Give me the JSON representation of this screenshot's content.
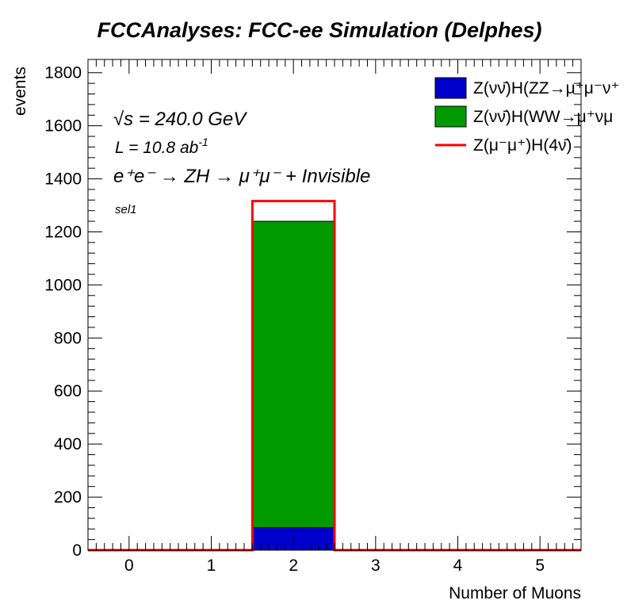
{
  "chart_data": {
    "type": "bar",
    "title": "FCCAnalyses: FCC-ee Simulation (Delphes)",
    "xlabel": "Number of Muons",
    "ylabel": "events",
    "xlim": [
      -0.5,
      5.5
    ],
    "ylim": [
      0,
      1850
    ],
    "x_ticks": [
      "0",
      "1",
      "2",
      "3",
      "4",
      "5"
    ],
    "y_ticks": [
      "0",
      "200",
      "400",
      "600",
      "800",
      "1000",
      "1200",
      "1400",
      "1600",
      "1800"
    ],
    "bin_edges": [
      -0.5,
      0.5,
      1.5,
      2.5,
      3.5,
      4.5,
      5.5
    ],
    "stacked": true,
    "series": [
      {
        "name": "Z(νν̄)H(ZZ→μ⁺μ⁻ν⁺",
        "kind": "stacked-fill",
        "color": "#0000cc",
        "values": [
          0,
          0,
          85,
          0,
          0,
          0
        ]
      },
      {
        "name": "Z(νν̄)H(WW→μ⁺νμ",
        "kind": "stacked-fill",
        "color": "#009900",
        "values": [
          0,
          0,
          1155,
          0,
          0,
          0
        ]
      },
      {
        "name": "Z(μ⁻μ⁺)H(4ν̄)",
        "kind": "line",
        "color": "#ff0000",
        "values": [
          0,
          0,
          1316,
          0,
          0,
          0
        ]
      }
    ],
    "legend_position": "top-right",
    "annotations": {
      "sqrt_s_symbol": "√s",
      "energy": "= 240.0 GeV",
      "luminosity": "L = 10.8 ab",
      "luminosity_exp": "-1",
      "process": "e⁺e⁻ → ZH → μ⁺μ⁻ + Invisible",
      "selection": "sel1"
    }
  }
}
